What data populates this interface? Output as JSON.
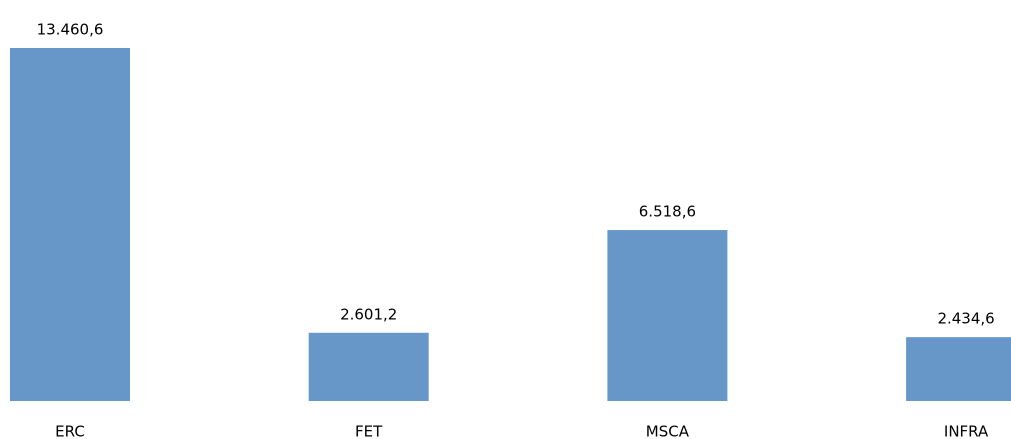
{
  "chart_data": {
    "type": "bar",
    "categories": [
      "ERC",
      "FET",
      "MSCA",
      "INFRA"
    ],
    "values": [
      13460.6,
      2601.2,
      6518.6,
      2434.6
    ],
    "value_labels": [
      "13.460,6",
      "2.601,2",
      "6.518,6",
      "2.434,6"
    ],
    "color": "#6797c9"
  }
}
